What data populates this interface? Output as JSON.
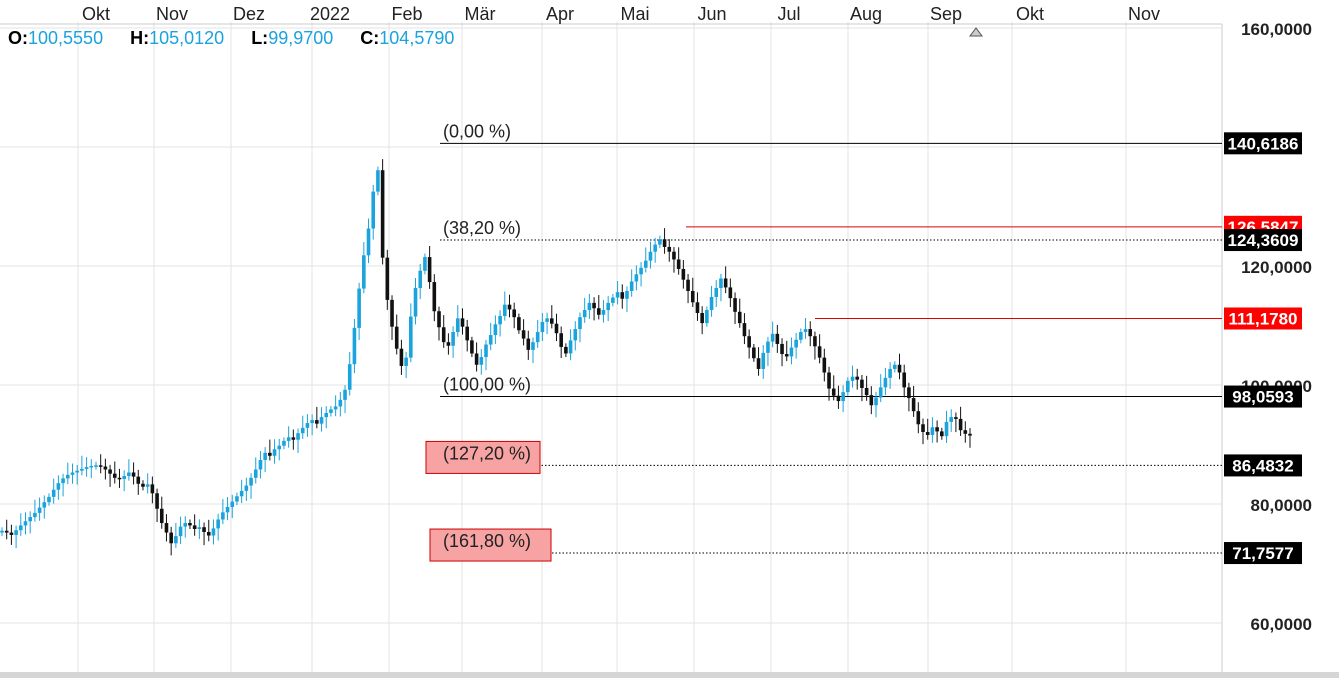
{
  "ohlc": {
    "o_label": "O:",
    "o_value": "100,5550",
    "h_label": "H:",
    "h_value": "105,0120",
    "l_label": "L:",
    "l_value": "99,9700",
    "c_label": "C:",
    "c_value": "104,5790"
  },
  "colors": {
    "up": "#1aa3dc",
    "down": "#111111",
    "grid": "#e3e3e3",
    "resistance": "#e00000",
    "tag_dark": "#000000",
    "tag_red": "#ff0000",
    "fib_box_fill": "#f7a3a3",
    "fib_box_stroke": "#cc0000"
  },
  "chart_data": {
    "type": "candlestick",
    "x_ticks": [
      "Okt",
      "Nov",
      "Dez",
      "2022",
      "Feb",
      "Mär",
      "Apr",
      "Mai",
      "Jun",
      "Jul",
      "Aug",
      "Sep",
      "Okt",
      "Nov"
    ],
    "y_ticks": [
      "160,0000",
      "120,0000",
      "100,0000",
      "80,0000",
      "60,0000"
    ],
    "y_tick_values": [
      160,
      120,
      100,
      80,
      60
    ],
    "ylim": [
      52,
      163
    ],
    "grid": true,
    "price_tags": [
      {
        "label": "140,6186",
        "value": 140.6186,
        "style": "dark"
      },
      {
        "label": "126,5847",
        "value": 126.5847,
        "style": "red"
      },
      {
        "label": "124,3609",
        "value": 124.3609,
        "style": "dark"
      },
      {
        "label": "111,1780",
        "value": 111.178,
        "style": "red"
      },
      {
        "label": "98,0593",
        "value": 98.0593,
        "style": "dark"
      },
      {
        "label": "86,4832",
        "value": 86.4832,
        "style": "dark"
      },
      {
        "label": "71,7577",
        "value": 71.7577,
        "style": "dark"
      }
    ],
    "fib_levels": [
      {
        "label": "(0,00 %)",
        "value": 140.6186,
        "highlight": false
      },
      {
        "label": "(38,20 %)",
        "value": 124.3609,
        "highlight": false
      },
      {
        "label": "(100,00 %)",
        "value": 98.0593,
        "highlight": false
      },
      {
        "label": "(127,20 %)",
        "value": 86.4832,
        "highlight": true
      },
      {
        "label": "(161,80 %)",
        "value": 71.7577,
        "highlight": true
      }
    ],
    "resistance_lines": [
      126.5847,
      111.178
    ],
    "series": [
      {
        "close": [
          75.5,
          75.2,
          74.8,
          75.6,
          76.4,
          77.1,
          77.8,
          78.5,
          79.4,
          80.3,
          81.2,
          82.4,
          83.5,
          84.3,
          84.9,
          85.3,
          85.6,
          85.9,
          86.2,
          86.4,
          86.5,
          86.3,
          85.8,
          85.1,
          84.4,
          84.2,
          84.7,
          85.3,
          84.6,
          83.4,
          82.9,
          83.3,
          81.8,
          79.2,
          76.8,
          75.2,
          73.4,
          74.6,
          76.2,
          76.8,
          76.4,
          75.8,
          76.1,
          75.3,
          74.7,
          75.9,
          77.4,
          78.6,
          79.5,
          80.4,
          81.3,
          82.2,
          83.1,
          84.4,
          85.8,
          87.4,
          88.6,
          88.1,
          89.2,
          89.8,
          90.6,
          91.2,
          90.8,
          91.9,
          92.8,
          93.6,
          94.1,
          93.5,
          94.6,
          95.3,
          95.9,
          96.4,
          97.5,
          99.2,
          103.5,
          109.6,
          116.2,
          121.8,
          126.3,
          132.5,
          136.1,
          121.4,
          114.3,
          109.8,
          106.1,
          103.2,
          104.6,
          111.5,
          116.3,
          119.2,
          121.5,
          117.3,
          112.4,
          109.7,
          107.2,
          106.6,
          108.9,
          111.2,
          109.8,
          107.5,
          105.3,
          103.4,
          104.7,
          106.8,
          108.4,
          110.2,
          111.6,
          113.5,
          112.7,
          111.4,
          109.2,
          107.8,
          105.9,
          107.2,
          108.9,
          110.6,
          111.2,
          110.3,
          108.7,
          106.4,
          105.3,
          107.5,
          109.4,
          111.4,
          112.6,
          113.8,
          112.9,
          111.8,
          112.6,
          113.8,
          114.7,
          115.6,
          114.5,
          115.8,
          117.4,
          118.6,
          119.7,
          120.9,
          122.4,
          123.6,
          124.5,
          123.2,
          122.4,
          121.1,
          119.5,
          117.7,
          115.8,
          113.9,
          112.1,
          110.4,
          112.6,
          114.8,
          116.3,
          117.9,
          116.4,
          114.6,
          112.3,
          110.4,
          108.2,
          106.3,
          104.5,
          102.7,
          105.4,
          107.3,
          108.6,
          106.9,
          105.2,
          104.8,
          106.3,
          107.6,
          108.9,
          109.4,
          108.2,
          106.5,
          104.6,
          102.1,
          99.4,
          98.2,
          97.3,
          98.8,
          100.7,
          101.4,
          100.9,
          99.5,
          98.3,
          96.6,
          97.9,
          99.6,
          101.2,
          102.7,
          103.4,
          102.1,
          99.6,
          97.8,
          95.6,
          93.4,
          92.1,
          91.6,
          92.9,
          92.2,
          91.4,
          93.8,
          94.6,
          94.3,
          92.4,
          91.8,
          91.5
        ]
      }
    ],
    "x_start": 0,
    "x_end": 0
  }
}
